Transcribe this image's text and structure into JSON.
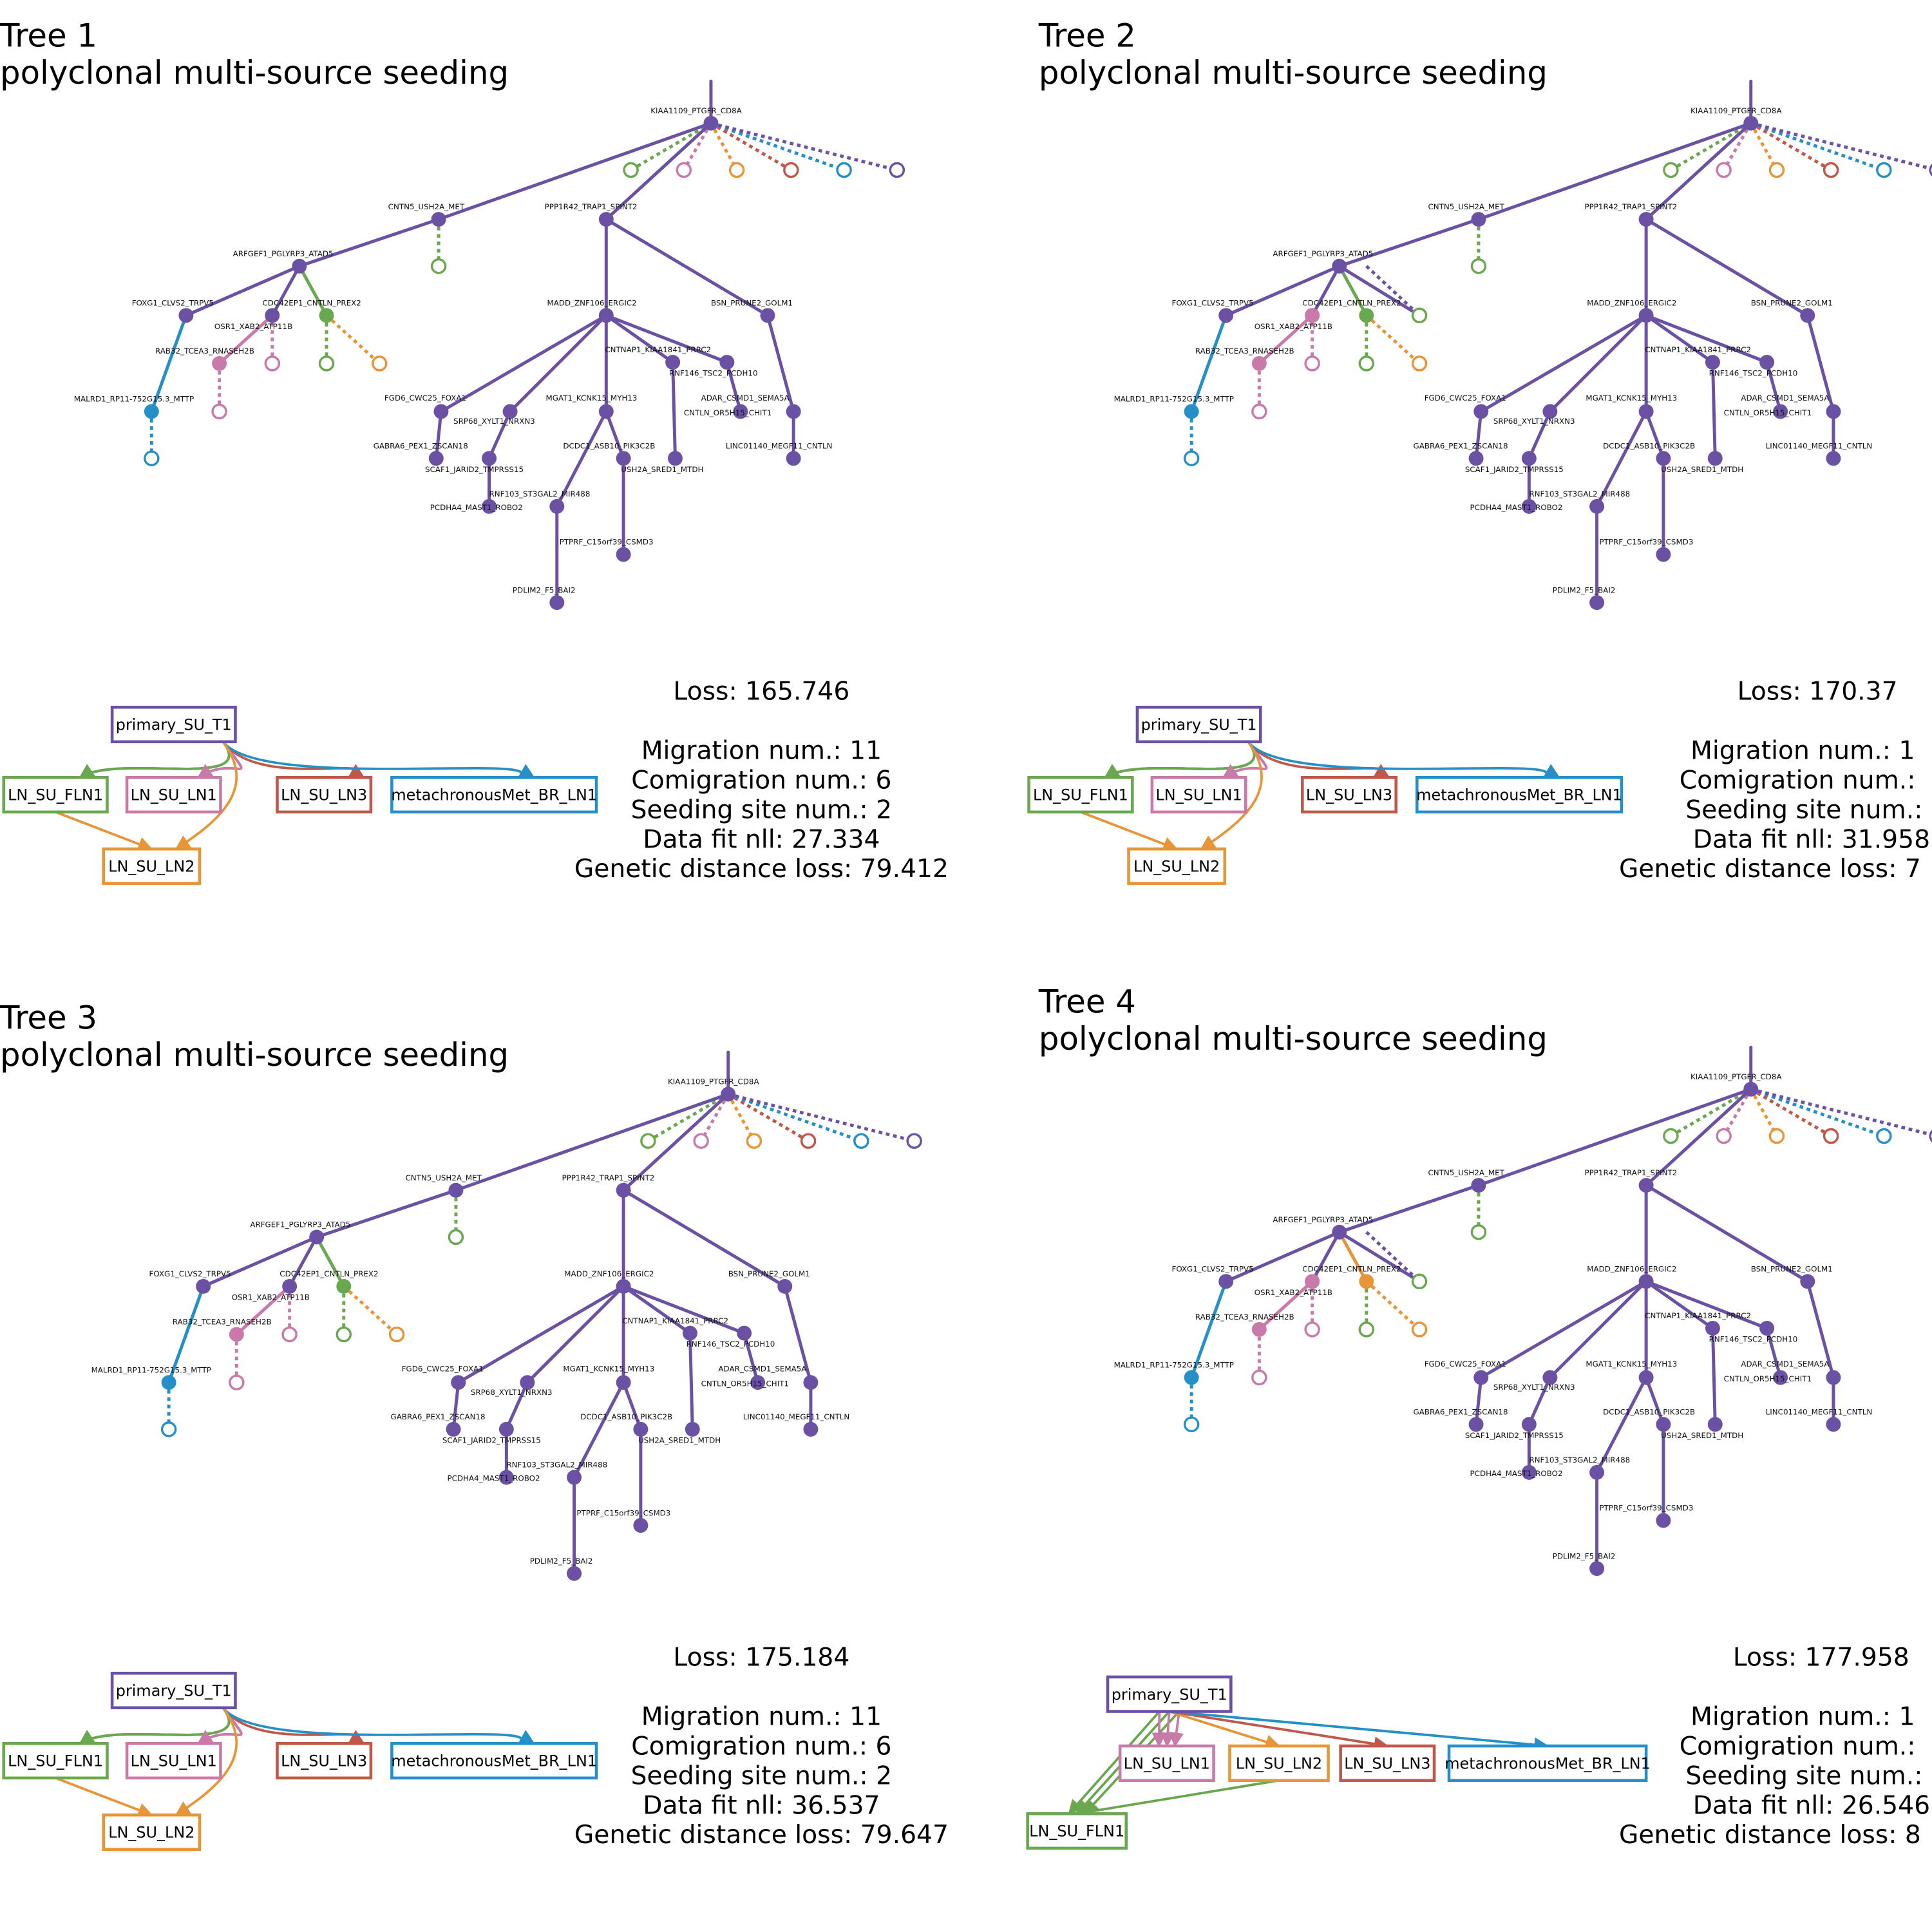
{
  "colors": {
    "primary": "#6a51a3",
    "FLN1": "#6aa84f",
    "LN1": "#c87aa8",
    "LN2": "#e69538",
    "LN3": "#c0584a",
    "BR_LN1": "#2590c8"
  },
  "trees": [
    {
      "title": "Tree 1",
      "subtitle": "polyclonal multi-source seeding",
      "loss": "Loss: 165.746",
      "migration_num": "Migration num.: 11",
      "comigration_num": "Comigration num.: 6",
      "seeding_site_num": "Seeding site num.: 2",
      "data_fit_nll": "Data fit nll: 27.334",
      "genetic_distance_loss": "Genetic distance loss: 79.412",
      "migration_graph": {
        "nodes": [
          "primary_SU_T1",
          "LN_SU_FLN1",
          "LN_SU_LN1",
          "LN_SU_LN3",
          "metachronousMet_BR_LN1",
          "LN_SU_LN2"
        ],
        "edges": [
          {
            "from": "primary_SU_T1",
            "to": "LN_SU_FLN1",
            "count": 3
          },
          {
            "from": "primary_SU_T1",
            "to": "LN_SU_LN1",
            "count": 3
          },
          {
            "from": "primary_SU_T1",
            "to": "LN_SU_LN3",
            "count": 1
          },
          {
            "from": "primary_SU_T1",
            "to": "metachronousMet_BR_LN1",
            "count": 1
          },
          {
            "from": "primary_SU_T1",
            "to": "LN_SU_LN2",
            "count": 1
          },
          {
            "from": "LN_SU_FLN1",
            "to": "LN_SU_LN2",
            "count": 1
          }
        ]
      }
    },
    {
      "title": "Tree 2",
      "subtitle": "polyclonal multi-source seeding",
      "loss": "Loss: 170.37",
      "migration_num": "Migration num.: 1",
      "comigration_num": "Comigration num.:",
      "seeding_site_num": "Seeding site num.:",
      "data_fit_nll": "Data fit nll: 31.958",
      "genetic_distance_loss": "Genetic distance loss: 7",
      "migration_graph": {
        "nodes": [
          "primary_SU_T1",
          "LN_SU_FLN1",
          "LN_SU_LN1",
          "LN_SU_LN3",
          "metachronousMet_BR_LN1",
          "LN_SU_LN2"
        ],
        "edges": [
          {
            "from": "primary_SU_T1",
            "to": "LN_SU_FLN1",
            "count": 4
          },
          {
            "from": "primary_SU_T1",
            "to": "LN_SU_LN1",
            "count": 2
          },
          {
            "from": "primary_SU_T1",
            "to": "LN_SU_LN3",
            "count": 1
          },
          {
            "from": "primary_SU_T1",
            "to": "metachronousMet_BR_LN1",
            "count": 1
          },
          {
            "from": "primary_SU_T1",
            "to": "LN_SU_LN2",
            "count": 1
          },
          {
            "from": "LN_SU_FLN1",
            "to": "LN_SU_LN2",
            "count": 1
          }
        ]
      }
    },
    {
      "title": "Tree 3",
      "subtitle": "polyclonal multi-source seeding",
      "loss": "Loss: 175.184",
      "migration_num": "Migration num.: 11",
      "comigration_num": "Comigration num.: 6",
      "seeding_site_num": "Seeding site num.: 2",
      "data_fit_nll": "Data fit nll: 36.537",
      "genetic_distance_loss": "Genetic distance loss: 79.647",
      "migration_graph": {
        "nodes": [
          "primary_SU_T1",
          "LN_SU_FLN1",
          "LN_SU_LN1",
          "LN_SU_LN3",
          "metachronousMet_BR_LN1",
          "LN_SU_LN2"
        ],
        "edges": [
          {
            "from": "primary_SU_T1",
            "to": "LN_SU_FLN1",
            "count": 3
          },
          {
            "from": "primary_SU_T1",
            "to": "LN_SU_LN1",
            "count": 3
          },
          {
            "from": "primary_SU_T1",
            "to": "LN_SU_LN3",
            "count": 1
          },
          {
            "from": "primary_SU_T1",
            "to": "metachronousMet_BR_LN1",
            "count": 1
          },
          {
            "from": "primary_SU_T1",
            "to": "LN_SU_LN2",
            "count": 1
          },
          {
            "from": "LN_SU_FLN1",
            "to": "LN_SU_LN2",
            "count": 1
          }
        ]
      }
    },
    {
      "title": "Tree 4",
      "subtitle": "polyclonal multi-source seeding",
      "loss": "Loss: 177.958",
      "migration_num": "Migration num.: 1",
      "comigration_num": "Comigration num.:",
      "seeding_site_num": "Seeding site num.:",
      "data_fit_nll": "Data fit nll: 26.546",
      "genetic_distance_loss": "Genetic distance loss: 8",
      "migration_graph": {
        "nodes": [
          "primary_SU_T1",
          "LN_SU_LN1",
          "LN_SU_LN2",
          "LN_SU_LN3",
          "metachronousMet_BR_LN1",
          "LN_SU_FLN1"
        ],
        "edges": [
          {
            "from": "primary_SU_T1",
            "to": "LN_SU_FLN1",
            "count": 3
          },
          {
            "from": "primary_SU_T1",
            "to": "LN_SU_LN1",
            "count": 3
          },
          {
            "from": "primary_SU_T1",
            "to": "LN_SU_LN2",
            "count": 1
          },
          {
            "from": "primary_SU_T1",
            "to": "LN_SU_LN3",
            "count": 1
          },
          {
            "from": "primary_SU_T1",
            "to": "metachronousMet_BR_LN1",
            "count": 1
          },
          {
            "from": "LN_SU_LN2",
            "to": "LN_SU_FLN1",
            "count": 1
          }
        ]
      }
    }
  ],
  "clone_tree": {
    "node_labels": {
      "root": "KIAA1109_PTGFR_CD8A",
      "cntn5": "CNTN5_USH2A_MET",
      "ppp1r42": "PPP1R42_TRAP1_SPINT2",
      "arfgef1": "ARFGEF1_PGLYRP3_ATAD5",
      "foxg1": "FOXG1_CLVS2_TRPV5",
      "cdc42ep1": "CDC42EP1_CNTLN_PREX2",
      "osr1": "OSR1_XAB2_ATP11B",
      "rab32": "RAB32_TCEA3_RNASEH2B",
      "malrd1": "MALRD1_RP11-752G15.3_MTTP",
      "madd": "MADD_ZNF106_ERGIC2",
      "bsn": "BSN_PRUNE2_GOLM1",
      "cntnap1": "CNTNAP1_KIAA1841_PRRC2",
      "rnf146": "RNF146_TSC2_PCDH10",
      "fgd6": "FGD6_CWC25_FOXA1",
      "mgat1": "MGAT1_KCNK15_MYH13",
      "adar": "ADAR_CSMD1_SEMA5A",
      "cntln": "CNTLN_OR5H15_CHIT1",
      "srp68": "SRP68_XYLT1_NRXN3",
      "gabra6": "GABRA6_PEX1_ZSCAN18",
      "dcdc1": "DCDC1_ASB10_PIK3C2B",
      "linc01140": "LINC01140_MEGF11_CNTLN",
      "scaf1": "SCAF1_JARID2_TMPRSS15",
      "ush2a": "USH2A_SRED1_MTDH",
      "rnf103": "RNF103_ST3GAL2_MIR488",
      "pcdha4": "PCDHA4_MAST1_ROBO2",
      "ptprf": "PTPRF_C15orf39_CSMD3",
      "pdlim2": "PDLIM2_F5_BAI2"
    }
  }
}
